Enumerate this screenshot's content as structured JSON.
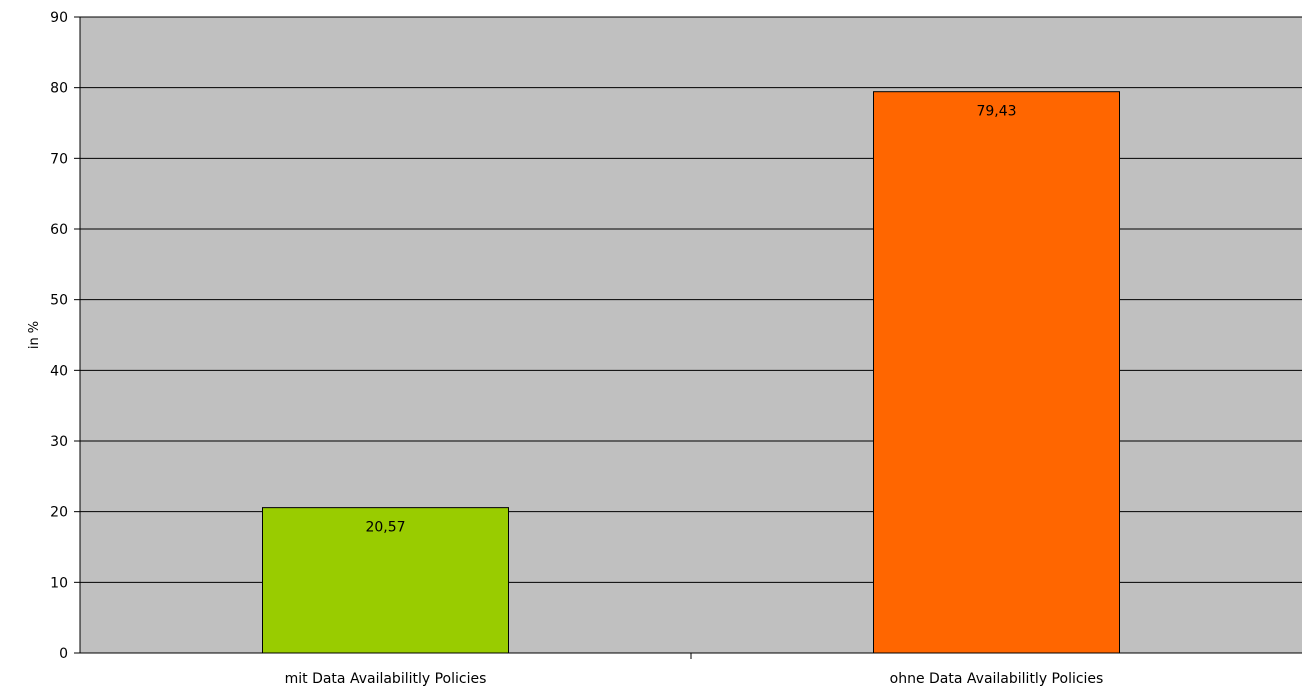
{
  "chart_data": {
    "type": "bar",
    "categories": [
      "mit Data Availabilitly Policies",
      "ohne Data Availabilitly Policies"
    ],
    "values": [
      20.57,
      79.43
    ],
    "data_labels": [
      "20,57",
      "79,43"
    ],
    "colors": [
      "#99cc00",
      "#ff6600"
    ],
    "ylabel": "in %",
    "ylim": [
      0,
      90
    ],
    "yticks": [
      0,
      10,
      20,
      30,
      40,
      50,
      60,
      70,
      80,
      90
    ],
    "grid": true,
    "plot_background": "#c0c0c0",
    "legend": "none"
  }
}
